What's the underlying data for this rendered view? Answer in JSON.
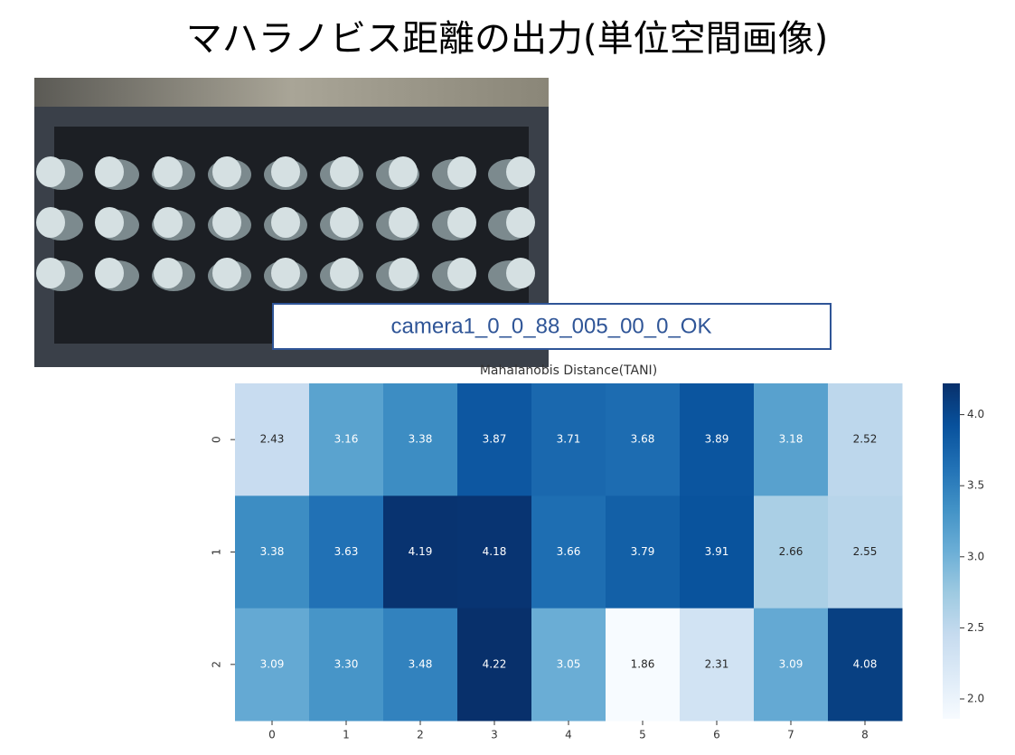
{
  "slide": {
    "title": "マハラノビス距離の出力(単位空間画像)",
    "label": "camera1_0_0_88_005_00_0_OK"
  },
  "chart_data": {
    "type": "heatmap",
    "title": "Mahalanobis Distance(TANI)",
    "x_categories": [
      "0",
      "1",
      "2",
      "3",
      "4",
      "5",
      "6",
      "7",
      "8"
    ],
    "y_categories": [
      "0",
      "1",
      "2"
    ],
    "values": [
      [
        2.43,
        3.16,
        3.38,
        3.87,
        3.71,
        3.68,
        3.89,
        3.18,
        2.52
      ],
      [
        3.38,
        3.63,
        4.19,
        4.18,
        3.66,
        3.79,
        3.91,
        2.66,
        2.55
      ],
      [
        3.09,
        3.3,
        3.48,
        4.22,
        3.05,
        1.86,
        2.31,
        3.09,
        4.08
      ]
    ],
    "value_labels": [
      [
        "2.43",
        "3.16",
        "3.38",
        "3.87",
        "3.71",
        "3.68",
        "3.89",
        "3.18",
        "2.52"
      ],
      [
        "3.38",
        "3.63",
        "4.19",
        "4.18",
        "3.66",
        "3.79",
        "3.91",
        "2.66",
        "2.55"
      ],
      [
        "3.09",
        "3.30",
        "3.48",
        "4.22",
        "3.05",
        "1.86",
        "2.31",
        "3.09",
        "4.08"
      ]
    ],
    "colormap": "Blues",
    "clim": [
      1.86,
      4.22
    ],
    "cticks": [
      {
        "value": 2,
        "label": "2.0"
      },
      {
        "value": 2.5,
        "label": "2.5"
      },
      {
        "value": 3,
        "label": "3.0"
      },
      {
        "value": 3.5,
        "label": "3.5"
      },
      {
        "value": 4,
        "label": "4.0"
      }
    ]
  }
}
